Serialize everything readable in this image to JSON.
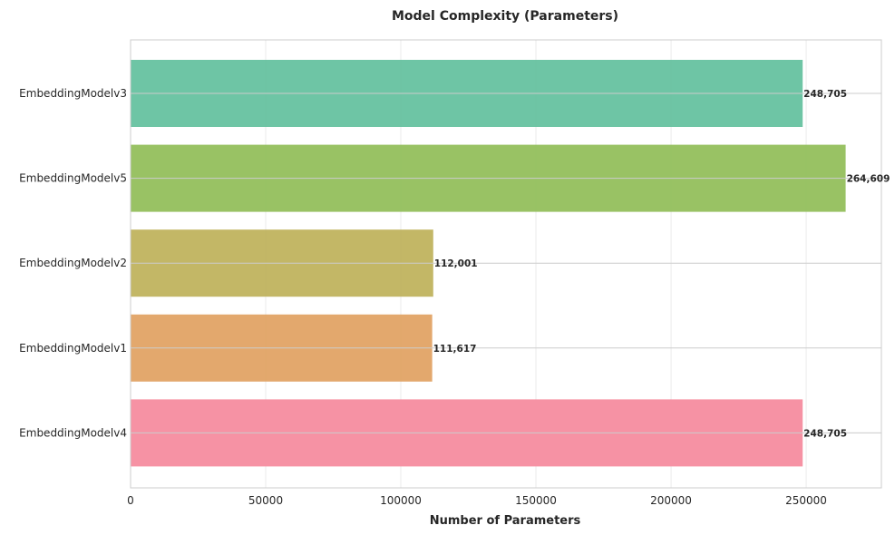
{
  "chart_data": {
    "type": "bar",
    "orientation": "horizontal",
    "title": "Model Complexity (Parameters)",
    "xlabel": "Number of Parameters",
    "ylabel": "",
    "categories": [
      "EmbeddingModelv3",
      "EmbeddingModelv5",
      "EmbeddingModelv2",
      "EmbeddingModelv1",
      "EmbeddingModelv4"
    ],
    "values": [
      248705,
      264609,
      112001,
      111617,
      248705
    ],
    "value_labels": [
      "248,705",
      "264,609",
      "112,001",
      "111,617",
      "248,705"
    ],
    "colors": [
      "#66c2a0",
      "#94bf5c",
      "#c0b35e",
      "#e2a365",
      "#f68c9f"
    ],
    "xlim": [
      0,
      277839
    ],
    "xticks": [
      0,
      50000,
      100000,
      150000,
      200000,
      250000
    ],
    "xtick_labels": [
      "0",
      "50000",
      "100000",
      "150000",
      "200000",
      "250000"
    ],
    "grid": true
  }
}
